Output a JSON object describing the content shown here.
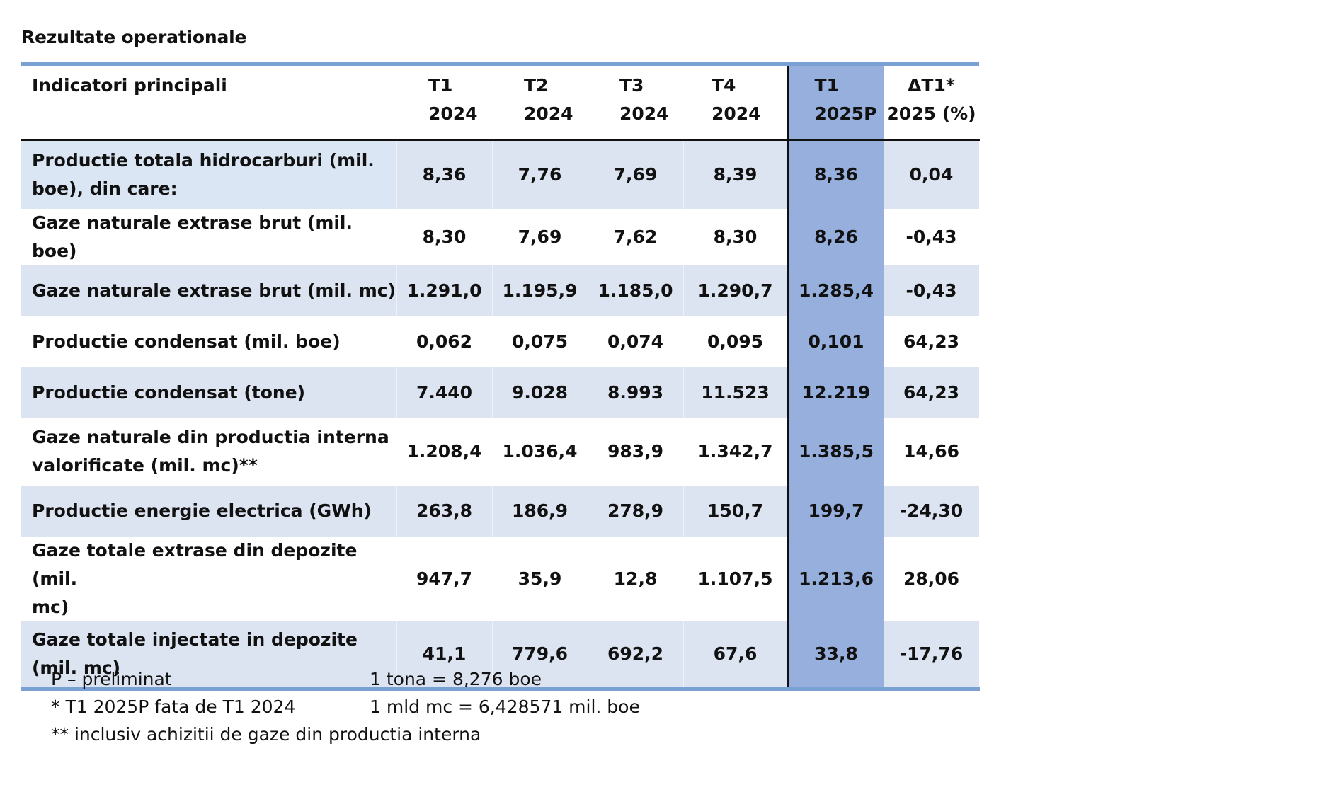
{
  "title": "Rezultate operationale",
  "table": {
    "header": {
      "indicator": "Indicatori principali",
      "columns": [
        {
          "line1": "T1",
          "line2": "2024"
        },
        {
          "line1": "T2",
          "line2": "2024"
        },
        {
          "line1": "T3",
          "line2": "2024"
        },
        {
          "line1": "T4",
          "line2": "2024"
        },
        {
          "line1": "T1",
          "line2": "2025P"
        },
        {
          "line1": "ΔT1*",
          "line2": "2025 (%)"
        }
      ]
    },
    "rows": [
      {
        "label_line1": "Productie totala hidrocarburi (mil.",
        "label_line2": "boe), din care:",
        "values": [
          "8,36",
          "7,76",
          "7,69",
          "8,39",
          "8,36",
          "0,04"
        ]
      },
      {
        "label_line1": "Gaze naturale extrase brut (mil. boe)",
        "label_line2": "",
        "values": [
          "8,30",
          "7,69",
          "7,62",
          "8,30",
          "8,26",
          "-0,43"
        ]
      },
      {
        "label_line1": "Gaze naturale extrase brut (mil. mc)",
        "label_line2": "",
        "values": [
          "1.291,0",
          "1.195,9",
          "1.185,0",
          "1.290,7",
          "1.285,4",
          "-0,43"
        ]
      },
      {
        "label_line1": "Productie condensat (mil. boe)",
        "label_line2": "",
        "values": [
          "0,062",
          "0,075",
          "0,074",
          "0,095",
          "0,101",
          "64,23"
        ]
      },
      {
        "label_line1": "Productie condensat (tone)",
        "label_line2": "",
        "values": [
          "7.440",
          "9.028",
          "8.993",
          "11.523",
          "12.219",
          "64,23"
        ]
      },
      {
        "label_line1": "Gaze naturale din productia interna",
        "label_line2": "valorificate (mil. mc)**",
        "values": [
          "1.208,4",
          "1.036,4",
          "983,9",
          "1.342,7",
          "1.385,5",
          "14,66"
        ]
      },
      {
        "label_line1": "Productie energie electrica (GWh)",
        "label_line2": "",
        "values": [
          "263,8",
          "186,9",
          "278,9",
          "150,7",
          "199,7",
          "-24,30"
        ]
      },
      {
        "label_line1": "Gaze totale extrase din depozite (mil.",
        "label_line2": "mc)",
        "values": [
          "947,7",
          "35,9",
          "12,8",
          "1.107,5",
          "1.213,6",
          "28,06"
        ]
      },
      {
        "label_line1": "Gaze totale injectate in depozite",
        "label_line2": "(mil. mc)",
        "values": [
          "41,1",
          "779,6",
          "692,2",
          "67,6",
          "33,8",
          "-17,76"
        ]
      }
    ]
  },
  "footnotes": [
    {
      "left": "P – preliminat",
      "right": "1 tona = 8,276 boe"
    },
    {
      "left": "* T1 2025P fata de T1 2024",
      "right": "1 mld mc = 6,428571 mil. boe"
    },
    {
      "left": "** inclusiv achizitii de gaze din productia interna",
      "right": ""
    }
  ],
  "colors": {
    "highlight_column": "#96afdc",
    "row_shade": "#dce3f1",
    "rule_blue": "#7ba0d3"
  }
}
